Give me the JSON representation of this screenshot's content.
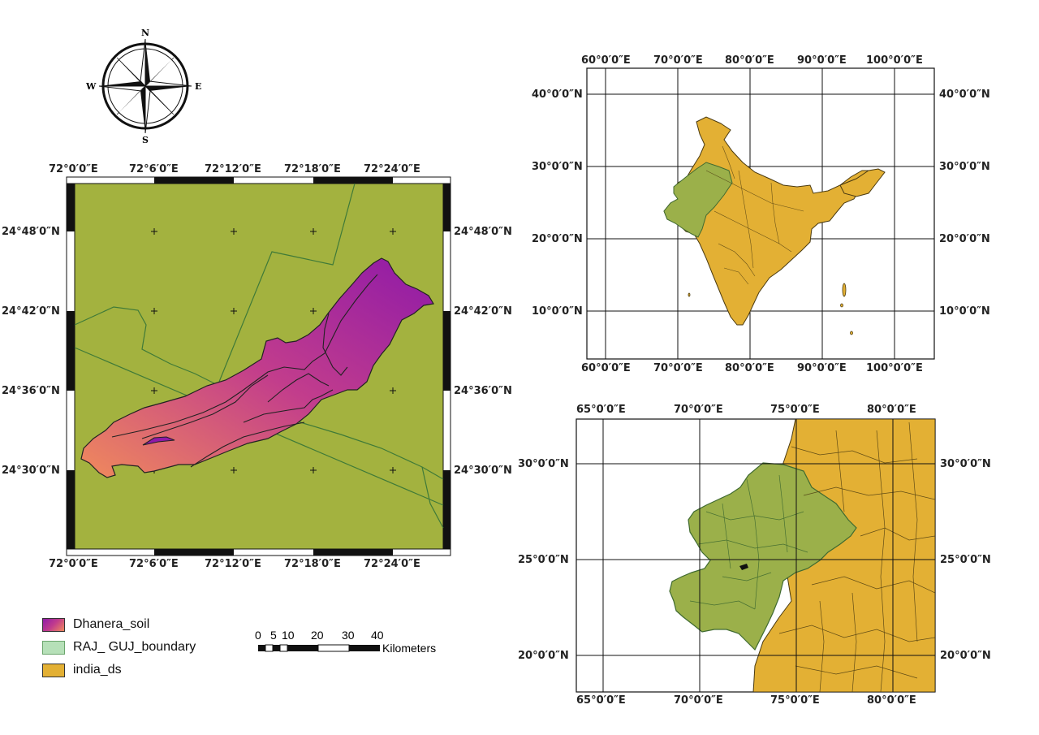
{
  "north_arrow": {
    "n": "N",
    "s": "S",
    "e": "E",
    "w": "W"
  },
  "main_map": {
    "top_x_labels": [
      "72°0′0″E",
      "72°6′0″E",
      "72°12′0″E",
      "72°18′0″E",
      "72°24′0″E"
    ],
    "bottom_x_labels": [
      "72°0′0″E",
      "72°6′0″E",
      "72°12′0″E",
      "72°18′0″E",
      "72°24′0″E"
    ],
    "left_y_labels": [
      "24°48′0″N",
      "24°42′0″N",
      "24°36′0″N",
      "24°30′0″N"
    ],
    "right_y_labels": [
      "24°48′0″N",
      "24°42′0″N",
      "24°36′0″N",
      "24°30′0″N"
    ],
    "background_color": "#a3b23f",
    "gradient_colors": [
      "#8f1aa8",
      "#c23d8c",
      "#f08a5c"
    ]
  },
  "legend": {
    "items": [
      {
        "label": "Dhanera_soil",
        "color": "gradient"
      },
      {
        "label": "RAJ_ GUJ_boundary",
        "color": "#b6e0b8"
      },
      {
        "label": "india_ds",
        "color": "#e3b034"
      }
    ]
  },
  "scale_bar": {
    "ticks": [
      "0",
      "5",
      "10",
      "20",
      "30",
      "40"
    ],
    "unit": "Kilometers"
  },
  "india_map": {
    "top_x_labels": [
      "60°0′0″E",
      "70°0′0″E",
      "80°0′0″E",
      "90°0′0″E",
      "100°0′0″E"
    ],
    "bottom_x_labels": [
      "60°0′0″E",
      "70°0′0″E",
      "80°0′0″E",
      "90°0′0″E",
      "100°0′0″E"
    ],
    "left_y_labels": [
      "40°0′0″N",
      "30°0′0″N",
      "20°0′0″N",
      "10°0′0″N"
    ],
    "right_y_labels": [
      "40°0′0″N",
      "30°0′0″N",
      "20°0′0″N",
      "10°0′0″N"
    ],
    "india_color": "#e3b034",
    "gujarat_color": "#9bb04a"
  },
  "region_map": {
    "top_x_labels": [
      "65°0′0″E",
      "70°0′0″E",
      "75°0′0″E",
      "80°0′0″E"
    ],
    "bottom_x_labels": [
      "65°0′0″E",
      "70°0′0″E",
      "75°0′0″E",
      "80°0′0″E"
    ],
    "left_y_labels": [
      "30°0′0″N",
      "25°0′0″N",
      "20°0′0″N"
    ],
    "right_y_labels": [
      "30°0′0″N",
      "25°0′0″N",
      "20°0′0″N"
    ]
  }
}
